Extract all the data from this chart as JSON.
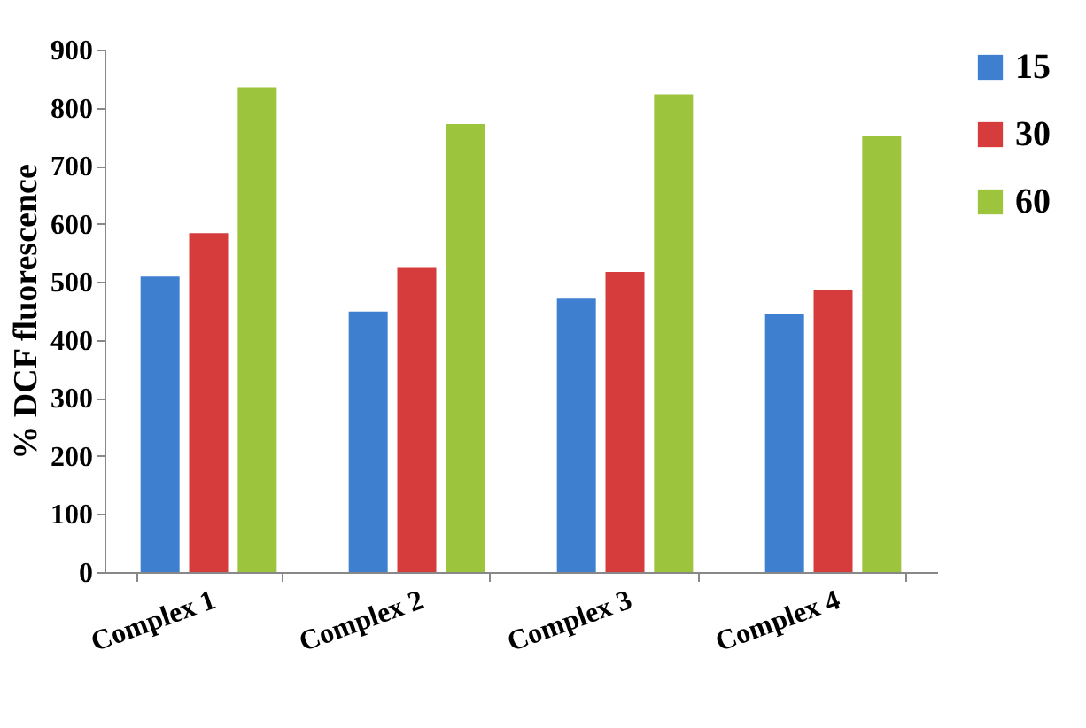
{
  "chart_data": {
    "type": "bar",
    "ylabel": "% DCF fluorescence",
    "categories": [
      "Complex 1",
      "Complex 2",
      "Complex 3",
      "Complex 4"
    ],
    "series": [
      {
        "name": "15",
        "color": "#3f7fd0",
        "values": [
          509,
          449,
          471,
          444
        ]
      },
      {
        "name": "30",
        "color": "#d63c3c",
        "values": [
          584,
          524,
          517,
          485
        ]
      },
      {
        "name": "60",
        "color": "#9cc43c",
        "values": [
          835,
          772,
          823,
          752
        ]
      }
    ],
    "ylim": [
      0,
      900
    ],
    "yticks": [
      0,
      100,
      200,
      300,
      400,
      500,
      600,
      700,
      800,
      900
    ],
    "grid": false,
    "legend": "right"
  }
}
